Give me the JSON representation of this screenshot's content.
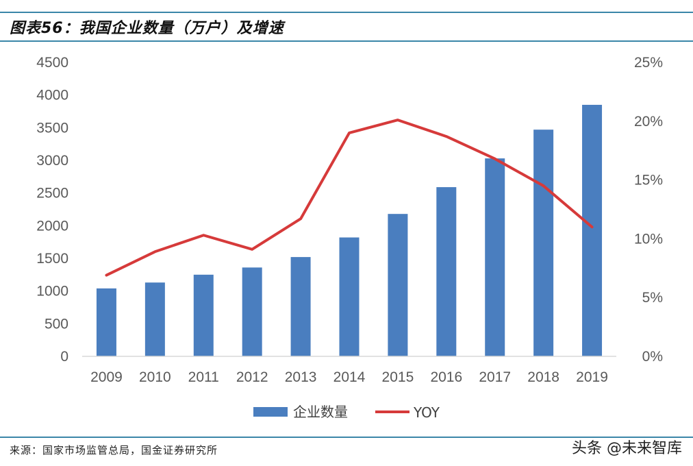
{
  "header": {
    "title": "图表56：我国企业数量（万户）及增速"
  },
  "footer": {
    "source": "来源：国家市场监管总局，国金证券研究所",
    "watermark": "头条 @未来智库"
  },
  "colors": {
    "bar": "#4a7ebf",
    "line": "#d63a3a",
    "rule": "#3a86a8",
    "axis_text": "#595959"
  },
  "chart_data": {
    "type": "bar",
    "categories": [
      "2009",
      "2010",
      "2011",
      "2012",
      "2013",
      "2014",
      "2015",
      "2016",
      "2017",
      "2018",
      "2019"
    ],
    "series": [
      {
        "name": "企业数量",
        "type": "bar",
        "axis": "left",
        "values": [
          1040,
          1130,
          1250,
          1360,
          1520,
          1820,
          2180,
          2590,
          3030,
          3470,
          3850
        ]
      },
      {
        "name": "YOY",
        "type": "line",
        "axis": "right",
        "values": [
          0.069,
          0.089,
          0.103,
          0.091,
          0.117,
          0.19,
          0.201,
          0.187,
          0.168,
          0.145,
          0.11
        ]
      }
    ],
    "y_left": {
      "min": 0,
      "max": 4500,
      "ticks": [
        "0",
        "500",
        "1000",
        "1500",
        "2000",
        "2500",
        "3000",
        "3500",
        "4000",
        "4500"
      ]
    },
    "y_right": {
      "min": 0,
      "max": 0.25,
      "ticks": [
        "0%",
        "5%",
        "10%",
        "15%",
        "20%",
        "25%"
      ]
    },
    "grid": false,
    "legend": {
      "position": "bottom",
      "items": [
        "企业数量",
        "YOY"
      ]
    }
  }
}
